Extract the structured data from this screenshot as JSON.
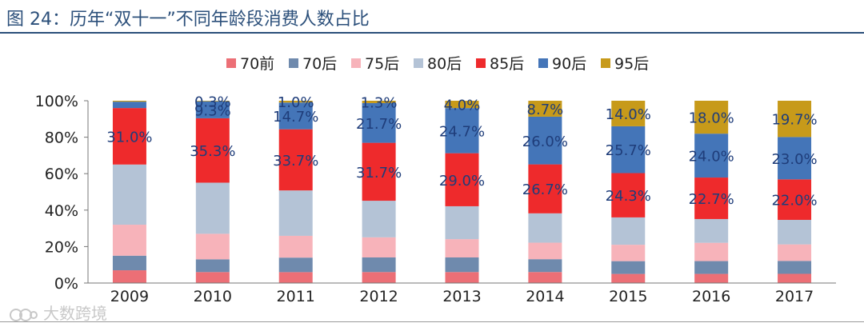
{
  "figure": {
    "title": "图 24：历年“双十一”不同年龄段消费人数占比",
    "watermark": "大数跨境"
  },
  "chart_data": {
    "type": "bar",
    "stacked": true,
    "categories": [
      "2009",
      "2010",
      "2011",
      "2012",
      "2013",
      "2014",
      "2015",
      "2016",
      "2017"
    ],
    "ylim": [
      0,
      100
    ],
    "yticks": [
      "0%",
      "20%",
      "40%",
      "60%",
      "80%",
      "100%"
    ],
    "legend_position": "top-center",
    "series": [
      {
        "name": "70前",
        "color": "#ec6f76",
        "values": [
          7,
          6,
          6,
          6,
          6,
          6,
          5,
          5,
          5
        ],
        "labels": [
          "",
          "",
          "",
          "",
          "",
          "",
          "",
          "",
          ""
        ]
      },
      {
        "name": "70后",
        "color": "#6f8aad",
        "values": [
          8,
          7,
          8,
          8,
          8,
          7,
          7,
          7,
          7
        ],
        "labels": [
          "",
          "",
          "",
          "",
          "",
          "",
          "",
          "",
          ""
        ]
      },
      {
        "name": "75后",
        "color": "#f7b3ba",
        "values": [
          17,
          14,
          12,
          11,
          10,
          9,
          9,
          10,
          9
        ],
        "labels": [
          "",
          "",
          "",
          "",
          "",
          "",
          "",
          "",
          ""
        ]
      },
      {
        "name": "80后",
        "color": "#b4c3d6",
        "values": [
          33,
          28,
          25,
          20,
          18,
          16,
          15,
          13,
          13.3
        ],
        "labels": [
          "",
          "",
          "",
          "",
          "",
          "",
          "",
          "",
          ""
        ]
      },
      {
        "name": "85后",
        "color": "#ee2a2c",
        "values": [
          31.0,
          35.3,
          33.7,
          31.7,
          29.0,
          26.7,
          24.3,
          22.7,
          22.0
        ],
        "labels": [
          "31.0%",
          "35.3%",
          "33.7%",
          "31.7%",
          "29.0%",
          "26.7%",
          "24.3%",
          "22.7%",
          "22.0%"
        ]
      },
      {
        "name": "90后",
        "color": "#4475b8",
        "values": [
          3.5,
          9.3,
          14.7,
          21.7,
          24.7,
          26.0,
          25.7,
          24.0,
          23.0
        ],
        "labels": [
          "",
          "9.3%",
          "14.7%",
          "21.7%",
          "24.7%",
          "26.0%",
          "25.7%",
          "24.0%",
          "23.0%"
        ]
      },
      {
        "name": "95后",
        "color": "#c79a1a",
        "values": [
          0.5,
          0.3,
          1.0,
          1.3,
          4.0,
          8.7,
          14.0,
          18.0,
          19.7
        ],
        "labels": [
          "",
          "0.3%",
          "1.0%",
          "1.3%",
          "4.0%",
          "8.7%",
          "14.0%",
          "18.0%",
          "19.7%"
        ]
      }
    ]
  }
}
